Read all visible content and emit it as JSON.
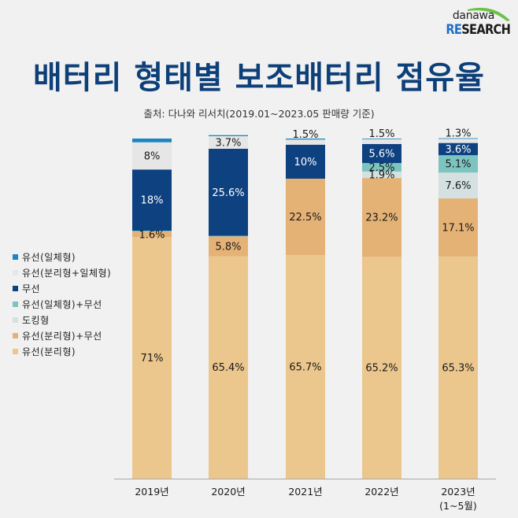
{
  "logo": {
    "top_text": "danawa",
    "bottom_re": "RE",
    "bottom_rest": "SEARCH",
    "colors": {
      "re": "#1e6fc9",
      "arc": "#6cc24a"
    }
  },
  "header": {
    "title": "배터리 형태별 보조배터리 점유율",
    "subtitle": "출처: 다나와 리서치(2019.01~2023.05 판매량 기준)"
  },
  "chart_data": {
    "type": "bar",
    "stacked": true,
    "title": "배터리 형태별 보조배터리 점유율",
    "subtitle": "출처: 다나와 리서치(2019.01~2023.05 판매량 기준)",
    "xlabel": "",
    "ylabel": "",
    "ylim": [
      0,
      100
    ],
    "grid": false,
    "legend_position": "left",
    "categories": [
      "2019년",
      "2020년",
      "2021년",
      "2022년",
      "2023년"
    ],
    "category_sublabels": [
      "",
      "",
      "",
      "",
      "(1~5월)"
    ],
    "series": [
      {
        "name": "유선(분리형)",
        "color": "#ecc78d",
        "label_color": "#1a1a1a",
        "values": [
          71,
          65.4,
          65.7,
          65.2,
          65.3
        ],
        "labels": [
          "71%",
          "65.4%",
          "65.7%",
          "65.2%",
          "65.3%"
        ]
      },
      {
        "name": "유선(분리형)+무선",
        "color": "#e5b276",
        "label_color": "#1a1a1a",
        "values": [
          1.6,
          5.8,
          22.5,
          23.2,
          17.1
        ],
        "labels": [
          "1.6%",
          "5.8%",
          "22.5%",
          "23.2%",
          "17.1%"
        ]
      },
      {
        "name": "도킹형",
        "color": "#d4e1e0",
        "label_color": "#1a1a1a",
        "values": [
          0,
          0,
          0,
          1.9,
          7.6
        ],
        "labels": [
          "",
          "",
          "",
          "1.9%",
          "7.6%"
        ]
      },
      {
        "name": "유선(일체형)+무선",
        "color": "#7cc4bf",
        "label_color": "#1a1a1a",
        "values": [
          0.3,
          0.2,
          0,
          2.5,
          5.1
        ],
        "labels": [
          "",
          "",
          "",
          "2.5%",
          "5.1%"
        ]
      },
      {
        "name": "무선",
        "color": "#0e4180",
        "label_color": "#ffffff",
        "values": [
          18,
          25.6,
          10,
          5.6,
          3.6
        ],
        "labels": [
          "18%",
          "25.6%",
          "10%",
          "5.6%",
          "3.6%"
        ]
      },
      {
        "name": "유선(분리형+일체형)",
        "color": "#e6e6e6",
        "label_color": "#1a1a1a",
        "values": [
          8,
          3.7,
          1.5,
          1.5,
          1.3
        ],
        "labels": [
          "8%",
          "3.7%",
          "1.5%",
          "1.5%",
          "1.3%"
        ]
      },
      {
        "name": "유선(일체형)",
        "color": "#1b86c1",
        "label_color": "#1a1a1a",
        "values": [
          1.1,
          0.3,
          0.3,
          0.1,
          0.1
        ],
        "labels": [
          "",
          "",
          "",
          "",
          ""
        ]
      }
    ],
    "legend_order": [
      "유선(일체형)",
      "유선(분리형+일체형)",
      "무선",
      "유선(일체형)+무선",
      "도킹형",
      "유선(분리형)+무선",
      "유선(분리형)"
    ]
  }
}
